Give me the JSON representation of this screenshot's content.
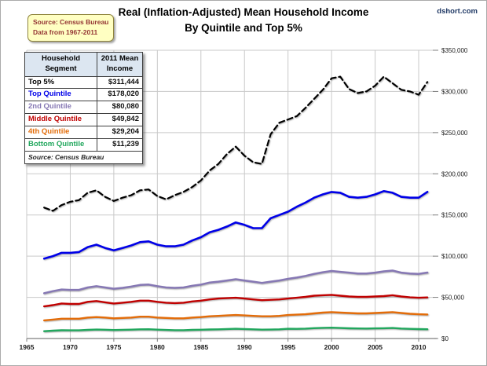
{
  "watermark": "dshort.com",
  "title": {
    "line1": "Real (Inflation-Adjusted) Mean Household Income",
    "line2": "By Quintile and Top 5%"
  },
  "source_box": {
    "line1": "Source: Census Bureau",
    "line2": "Data from 1967-2011"
  },
  "legend_table": {
    "header": [
      "Household\nSegment",
      "2011 Mean\nIncome"
    ],
    "rows": [
      {
        "label": "Top 5%",
        "value": "$311,444",
        "color": "#000000"
      },
      {
        "label": "Top Quintile",
        "value": "$178,020",
        "color": "#0000E8"
      },
      {
        "label": "2nd Quintile",
        "value": "$80,080",
        "color": "#8678B4"
      },
      {
        "label": "Middle Quintile",
        "value": "$49,842",
        "color": "#C00000"
      },
      {
        "label": "4th Quintile",
        "value": "$29,204",
        "color": "#E36C09"
      },
      {
        "label": "Bottom Quintile",
        "value": "$11,239",
        "color": "#21A75D"
      }
    ],
    "footer": "Source: Census Bureau"
  },
  "chart_data": {
    "type": "line",
    "title": "Real (Inflation-Adjusted) Mean Household Income By Quintile and Top 5%",
    "xlabel": "",
    "ylabel": "",
    "xlim": [
      1965,
      2012.3
    ],
    "ylim": [
      0,
      350000
    ],
    "grid": true,
    "legend_position": "table-top-left",
    "x_ticks": [
      {
        "value": 1965,
        "label": "1965"
      },
      {
        "value": 1970,
        "label": "1970"
      },
      {
        "value": 1975,
        "label": "1975"
      },
      {
        "value": 1980,
        "label": "1980"
      },
      {
        "value": 1985,
        "label": "1985"
      },
      {
        "value": 1990,
        "label": "1990"
      },
      {
        "value": 1995,
        "label": "1995"
      },
      {
        "value": 2000,
        "label": "2000"
      },
      {
        "value": 2005,
        "label": "2005"
      },
      {
        "value": 2010,
        "label": "2010"
      }
    ],
    "y_ticks": [
      {
        "value": 0,
        "label": "$0"
      },
      {
        "value": 50000,
        "label": "$50,000"
      },
      {
        "value": 100000,
        "label": "$100,000"
      },
      {
        "value": 150000,
        "label": "$150,000"
      },
      {
        "value": 200000,
        "label": "$200,000"
      },
      {
        "value": 250000,
        "label": "$250,000"
      },
      {
        "value": 300000,
        "label": "$300,000"
      },
      {
        "value": 350000,
        "label": "$350,000"
      }
    ],
    "years": [
      1967,
      1968,
      1969,
      1970,
      1971,
      1972,
      1973,
      1974,
      1975,
      1976,
      1977,
      1978,
      1979,
      1980,
      1981,
      1982,
      1983,
      1984,
      1985,
      1986,
      1987,
      1988,
      1989,
      1990,
      1991,
      1992,
      1993,
      1994,
      1995,
      1996,
      1997,
      1998,
      1999,
      2000,
      2001,
      2002,
      2003,
      2004,
      2005,
      2006,
      2007,
      2008,
      2009,
      2010,
      2011
    ],
    "series": [
      {
        "name": "Top 5%",
        "color": "#000000",
        "dash": "7,4",
        "width": 2.2,
        "values": [
          159000,
          155000,
          162000,
          166000,
          168000,
          177000,
          180000,
          172000,
          167000,
          171000,
          174000,
          180000,
          181000,
          173000,
          169000,
          174000,
          178000,
          184000,
          192000,
          204000,
          212000,
          224000,
          233000,
          222000,
          214000,
          212000,
          248000,
          262000,
          266000,
          270000,
          280000,
          291000,
          302000,
          316000,
          318000,
          303000,
          298000,
          300000,
          307000,
          318000,
          310000,
          302000,
          300000,
          296000,
          311444
        ]
      },
      {
        "name": "Top Quintile",
        "color": "#0000E8",
        "dash": "",
        "width": 2.6,
        "values": [
          97000,
          100000,
          104000,
          104000,
          105000,
          111000,
          114000,
          110000,
          107000,
          110000,
          113000,
          117000,
          118000,
          114000,
          112000,
          112000,
          114000,
          119000,
          123000,
          129000,
          132000,
          136000,
          141000,
          138000,
          134000,
          134000,
          146000,
          150000,
          154000,
          160000,
          165000,
          171000,
          175000,
          178000,
          177000,
          172000,
          171000,
          172000,
          175000,
          179000,
          177000,
          172000,
          171000,
          171000,
          178020
        ]
      },
      {
        "name": "2nd Quintile",
        "color": "#8678B4",
        "dash": "",
        "width": 2.5,
        "values": [
          55000,
          57500,
          59500,
          59000,
          59000,
          62000,
          63500,
          62000,
          60500,
          61500,
          63000,
          65000,
          65500,
          63500,
          62000,
          61500,
          62000,
          64000,
          65500,
          68000,
          69000,
          70500,
          72000,
          70500,
          69000,
          67500,
          69000,
          70500,
          72500,
          74000,
          76000,
          78500,
          80500,
          82000,
          81000,
          80000,
          79000,
          79000,
          80000,
          81500,
          82500,
          80000,
          79000,
          78500,
          80080
        ]
      },
      {
        "name": "Middle Quintile",
        "color": "#C00000",
        "dash": "",
        "width": 2.4,
        "values": [
          39000,
          40500,
          42500,
          42000,
          42000,
          44500,
          45500,
          44000,
          42500,
          43500,
          44500,
          46000,
          46000,
          44500,
          43500,
          43000,
          43500,
          45000,
          46000,
          47500,
          48500,
          49000,
          49500,
          48500,
          47500,
          46500,
          47000,
          47500,
          48500,
          49500,
          50500,
          52000,
          52500,
          53000,
          52000,
          51000,
          50500,
          50500,
          51000,
          51500,
          52500,
          51000,
          50000,
          49500,
          49842
        ]
      },
      {
        "name": "4th Quintile",
        "color": "#E36C09",
        "dash": "",
        "width": 2.4,
        "values": [
          22000,
          23000,
          24000,
          24000,
          24000,
          25500,
          26000,
          25500,
          24500,
          25000,
          25500,
          26500,
          26500,
          25500,
          25000,
          24500,
          24500,
          25500,
          26000,
          27000,
          27500,
          28000,
          28500,
          28000,
          27500,
          27000,
          27000,
          27500,
          28500,
          29000,
          29500,
          30500,
          31500,
          32000,
          31500,
          31000,
          30500,
          30500,
          31000,
          31500,
          32000,
          31000,
          30000,
          29500,
          29204
        ]
      },
      {
        "name": "Bottom Quintile",
        "color": "#21A75D",
        "dash": "",
        "width": 2.4,
        "values": [
          8900,
          9500,
          10000,
          9900,
          9900,
          10500,
          10900,
          10700,
          10300,
          10600,
          10800,
          11200,
          11300,
          10800,
          10400,
          10100,
          10100,
          10500,
          10700,
          11000,
          11200,
          11500,
          11800,
          11500,
          11200,
          10800,
          10900,
          11200,
          11800,
          11700,
          12000,
          12600,
          13000,
          13200,
          12800,
          12400,
          12200,
          12100,
          12300,
          12500,
          12800,
          12100,
          11700,
          11400,
          11239
        ]
      }
    ]
  }
}
